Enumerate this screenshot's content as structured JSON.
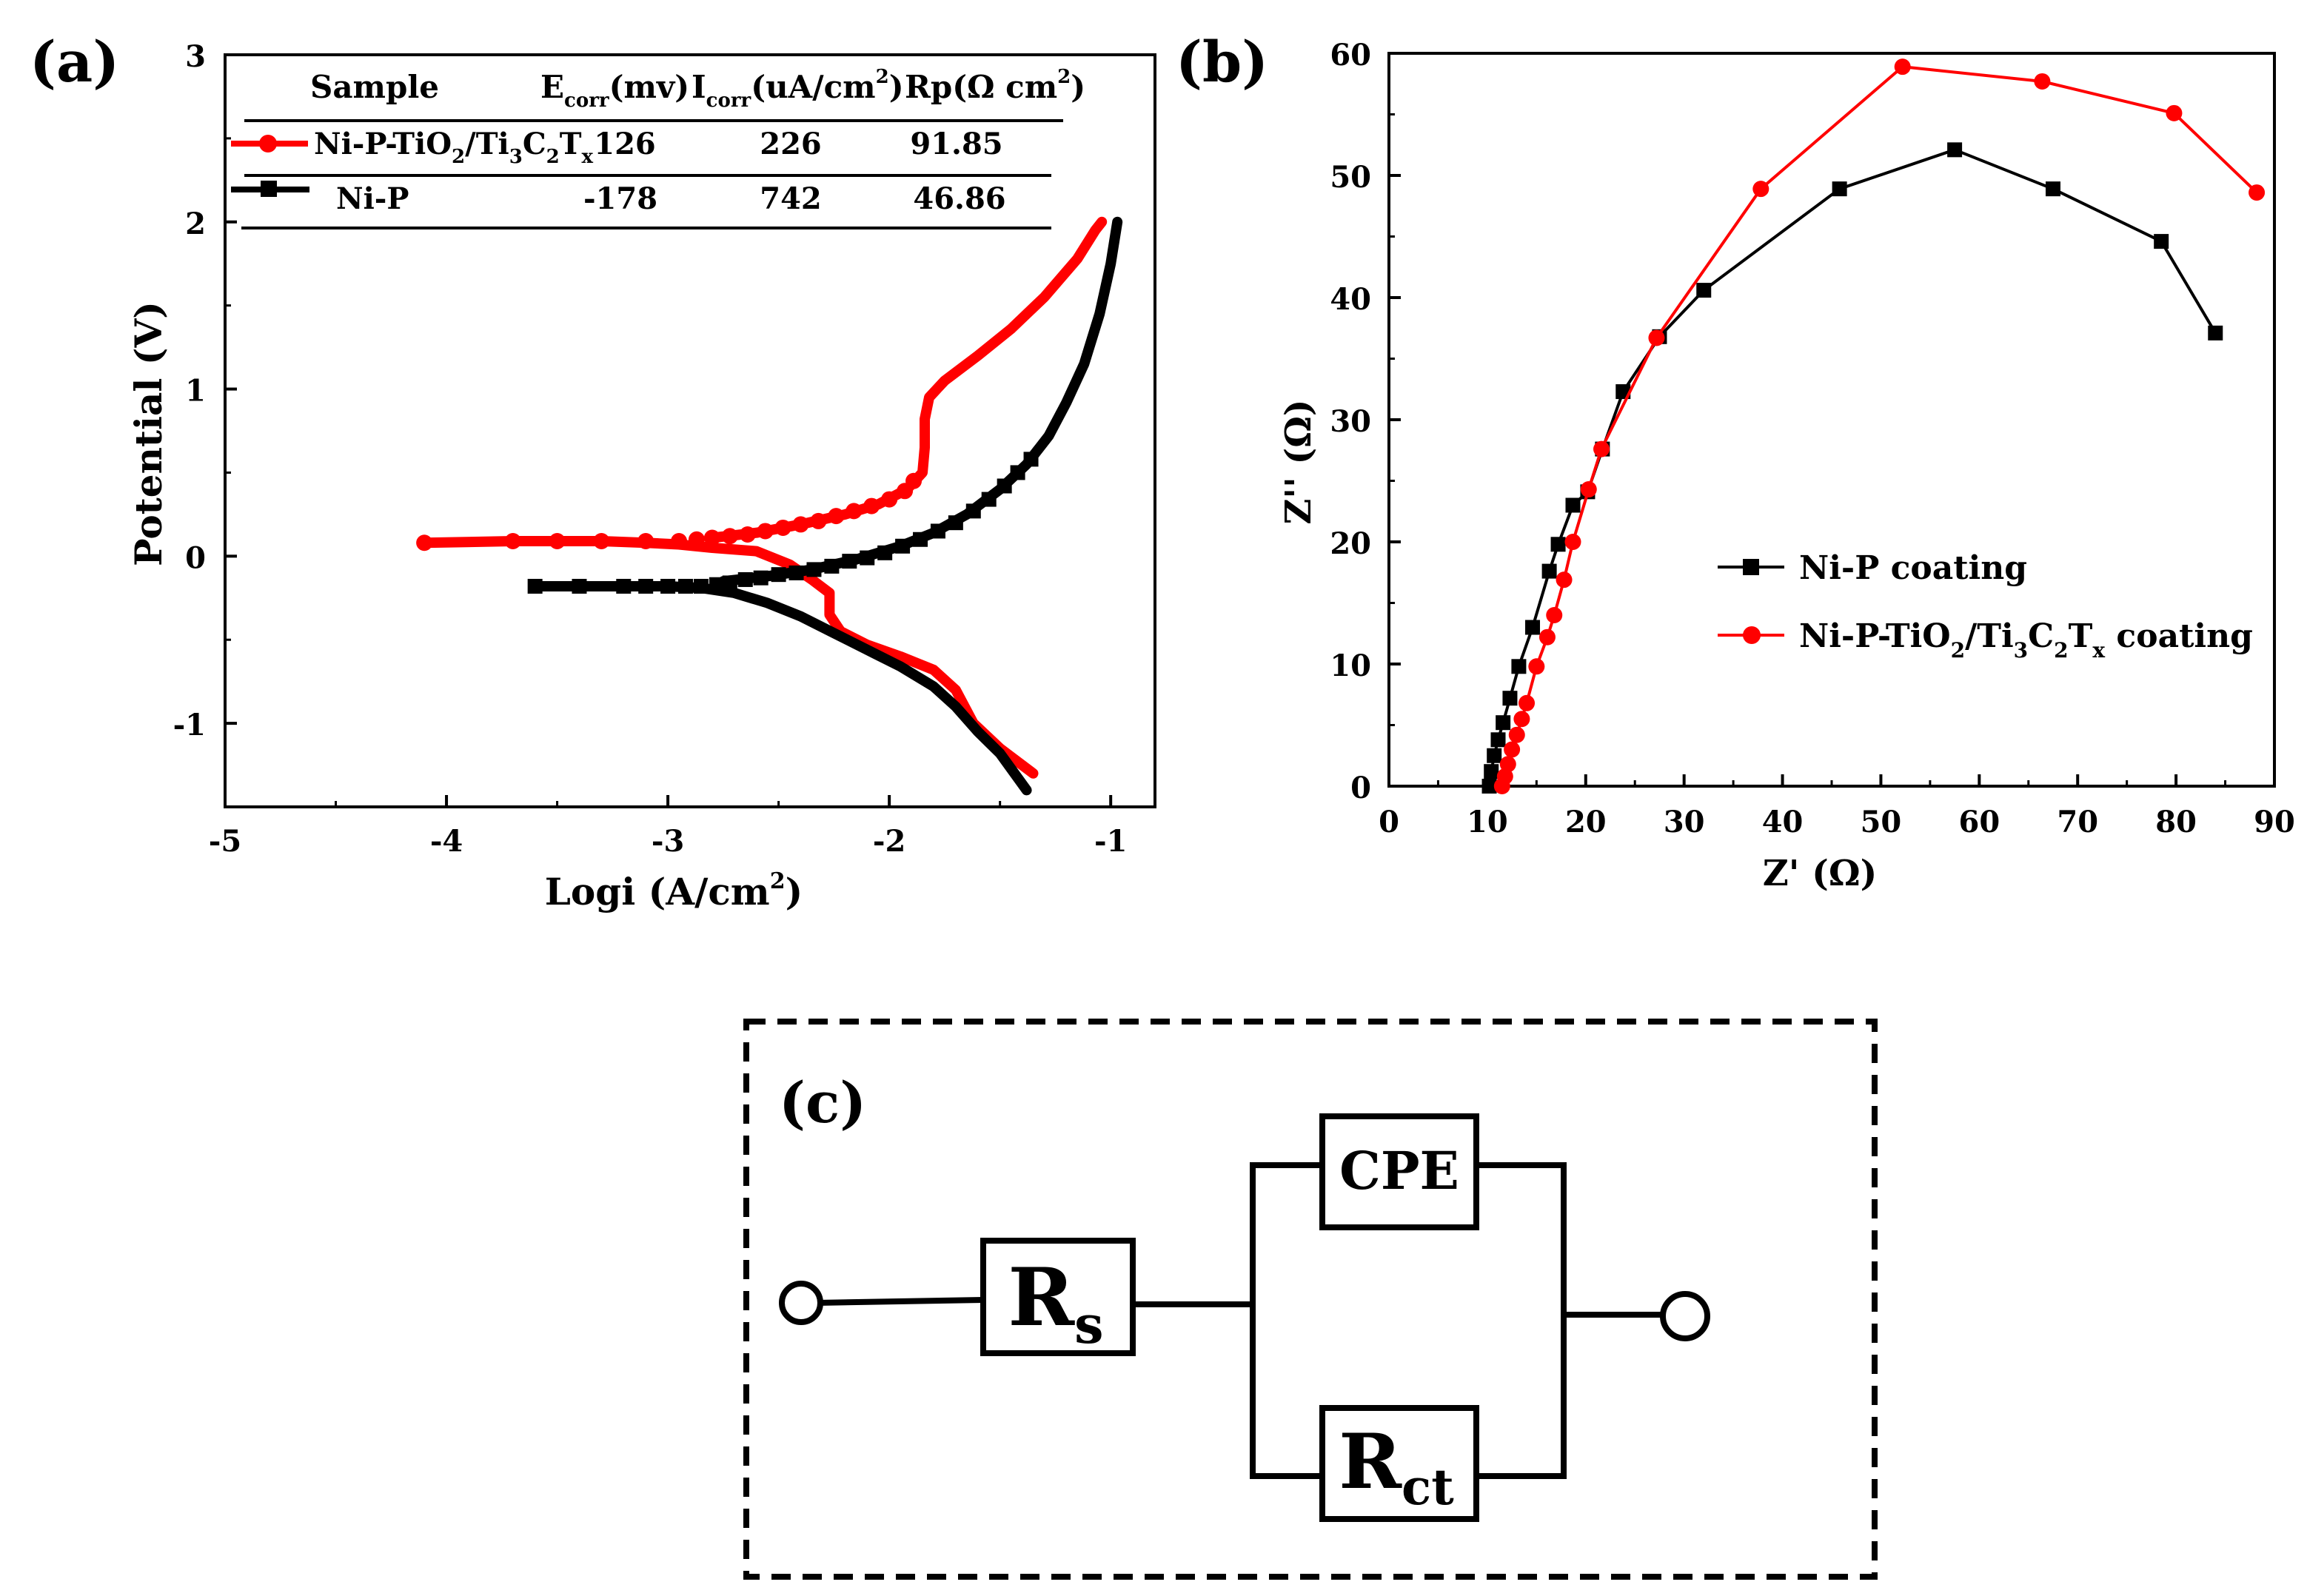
{
  "chart_data": [
    {
      "panel_label": "(a)",
      "type": "line",
      "xlabel": "Logi (A/cm",
      "xlabel_sup": "2",
      "xlabel_end": ")",
      "ylabel": "Potential (V)",
      "xlim": [
        -5,
        -0.8
      ],
      "ylim": [
        -1.5,
        3
      ],
      "xticks": [
        -5,
        -4,
        -3,
        -2,
        -1
      ],
      "yticks": [
        -1,
        0,
        1,
        2,
        3
      ],
      "colors": {
        "Ni-P": "#000000",
        "Ni-P-TiO2/Ti3C2Tx": "#ff0000"
      },
      "series": [
        {
          "name": "Ni-P-TiO2/Ti3C2Tx",
          "color": "#ff0000",
          "marker": "circle",
          "points": [
            [
              -4.1,
              0.08
            ],
            [
              -3.7,
              0.09
            ],
            [
              -3.5,
              0.09
            ],
            [
              -3.3,
              0.09
            ],
            [
              -3.1,
              0.08
            ],
            [
              -2.95,
              0.07
            ],
            [
              -2.8,
              0.05
            ],
            [
              -2.6,
              0.03
            ],
            [
              -2.45,
              -0.05
            ],
            [
              -2.35,
              -0.14
            ],
            [
              -2.27,
              -0.22
            ],
            [
              -2.27,
              -0.35
            ],
            [
              -2.22,
              -0.45
            ],
            [
              -2.1,
              -0.53
            ],
            [
              -1.95,
              -0.6
            ],
            [
              -1.8,
              -0.68
            ],
            [
              -1.7,
              -0.8
            ],
            [
              -1.62,
              -1.0
            ],
            [
              -1.5,
              -1.15
            ],
            [
              -1.35,
              -1.3
            ],
            null,
            [
              -2.8,
              0.11
            ],
            [
              -2.6,
              0.14
            ],
            [
              -2.4,
              0.19
            ],
            [
              -2.2,
              0.25
            ],
            [
              -2.05,
              0.31
            ],
            [
              -1.92,
              0.4
            ],
            [
              -1.85,
              0.5
            ],
            [
              -1.84,
              0.65
            ],
            [
              -1.84,
              0.82
            ],
            [
              -1.82,
              0.95
            ],
            [
              -1.75,
              1.05
            ],
            [
              -1.6,
              1.2
            ],
            [
              -1.45,
              1.36
            ],
            [
              -1.3,
              1.55
            ],
            [
              -1.15,
              1.78
            ],
            [
              -1.07,
              1.95
            ],
            [
              -1.04,
              2.0
            ]
          ],
          "marker_points": [
            [
              -4.1,
              0.08
            ],
            [
              -3.7,
              0.09
            ],
            [
              -3.5,
              0.09
            ],
            [
              -3.3,
              0.09
            ],
            [
              -3.1,
              0.09
            ],
            [
              -2.95,
              0.09
            ],
            [
              -2.87,
              0.1
            ],
            [
              -2.8,
              0.11
            ],
            [
              -2.72,
              0.12
            ],
            [
              -2.64,
              0.13
            ],
            [
              -2.56,
              0.15
            ],
            [
              -2.48,
              0.17
            ],
            [
              -2.4,
              0.19
            ],
            [
              -2.32,
              0.21
            ],
            [
              -2.24,
              0.24
            ],
            [
              -2.16,
              0.27
            ],
            [
              -2.08,
              0.3
            ],
            [
              -2.0,
              0.34
            ],
            [
              -1.93,
              0.39
            ],
            [
              -1.89,
              0.45
            ]
          ]
        },
        {
          "name": "Ni-P",
          "color": "#000000",
          "marker": "square",
          "points": [
            [
              -3.6,
              -0.18
            ],
            [
              -3.4,
              -0.18
            ],
            [
              -3.2,
              -0.18
            ],
            [
              -3.0,
              -0.18
            ],
            [
              -2.85,
              -0.19
            ],
            [
              -2.7,
              -0.22
            ],
            [
              -2.55,
              -0.28
            ],
            [
              -2.4,
              -0.36
            ],
            [
              -2.25,
              -0.46
            ],
            [
              -2.1,
              -0.56
            ],
            [
              -1.95,
              -0.66
            ],
            [
              -1.8,
              -0.78
            ],
            [
              -1.7,
              -0.9
            ],
            [
              -1.6,
              -1.05
            ],
            [
              -1.5,
              -1.18
            ],
            [
              -1.38,
              -1.4
            ],
            null,
            [
              -2.75,
              -0.15
            ],
            [
              -2.55,
              -0.12
            ],
            [
              -2.35,
              -0.08
            ],
            [
              -2.15,
              -0.02
            ],
            [
              -1.95,
              0.06
            ],
            [
              -1.8,
              0.14
            ],
            [
              -1.65,
              0.25
            ],
            [
              -1.5,
              0.4
            ],
            [
              -1.38,
              0.55
            ],
            [
              -1.28,
              0.72
            ],
            [
              -1.2,
              0.92
            ],
            [
              -1.12,
              1.15
            ],
            [
              -1.05,
              1.45
            ],
            [
              -1.0,
              1.75
            ],
            [
              -0.97,
              2.0
            ]
          ],
          "marker_points": [
            [
              -3.6,
              -0.18
            ],
            [
              -3.4,
              -0.18
            ],
            [
              -3.2,
              -0.18
            ],
            [
              -3.1,
              -0.18
            ],
            [
              -3.0,
              -0.18
            ],
            [
              -2.92,
              -0.18
            ],
            [
              -2.85,
              -0.18
            ],
            [
              -2.78,
              -0.17
            ],
            [
              -2.72,
              -0.16
            ],
            [
              -2.65,
              -0.14
            ],
            [
              -2.58,
              -0.13
            ],
            [
              -2.5,
              -0.11
            ],
            [
              -2.42,
              -0.1
            ],
            [
              -2.34,
              -0.08
            ],
            [
              -2.26,
              -0.06
            ],
            [
              -2.18,
              -0.03
            ],
            [
              -2.1,
              -0.01
            ],
            [
              -2.02,
              0.02
            ],
            [
              -1.94,
              0.06
            ],
            [
              -1.86,
              0.1
            ],
            [
              -1.78,
              0.15
            ],
            [
              -1.7,
              0.2
            ],
            [
              -1.62,
              0.27
            ],
            [
              -1.55,
              0.34
            ],
            [
              -1.48,
              0.42
            ],
            [
              -1.42,
              0.5
            ],
            [
              -1.36,
              0.58
            ]
          ]
        }
      ],
      "table": {
        "columns": [
          "Sample",
          "E",
          "corr",
          "(mv)",
          "I",
          "corr",
          "(uA/cm",
          "2",
          ")",
          "Rp(Ω cm",
          "2",
          ")"
        ],
        "rows": [
          {
            "sample": "Ni-P-TiO",
            "sub1": "2",
            "mid": "/Ti",
            "sub2": "3",
            "c": "C",
            "sub3": "2",
            "t": "T",
            "sub4": "x",
            "ecorr": "126",
            "icorr": "226",
            "rp": "91.85"
          },
          {
            "sample": "Ni-P",
            "ecorr": "-178",
            "icorr": "742",
            "rp": "46.86"
          }
        ]
      }
    },
    {
      "panel_label": "(b)",
      "type": "line",
      "xlabel": "Z' (Ω)",
      "ylabel": "Z'' (Ω)",
      "xlim": [
        0,
        90
      ],
      "ylim": [
        0,
        60
      ],
      "xticks": [
        0,
        10,
        20,
        30,
        40,
        50,
        60,
        70,
        80,
        90
      ],
      "yticks": [
        0,
        10,
        20,
        30,
        40,
        50,
        60
      ],
      "legend": {
        "position": "center-right",
        "items": [
          "Ni-P coating",
          "Ni-P-TiO2/Ti3C2Tx coating"
        ]
      },
      "series": [
        {
          "name": "Ni-P coating",
          "legend_parts": [
            "Ni-P coating"
          ],
          "color": "#000000",
          "marker": "square",
          "points": [
            [
              10.2,
              0
            ],
            [
              10.4,
              1.2
            ],
            [
              10.7,
              2.5
            ],
            [
              11.1,
              3.8
            ],
            [
              11.6,
              5.2
            ],
            [
              12.3,
              7.2
            ],
            [
              13.2,
              9.8
            ],
            [
              14.6,
              13.0
            ],
            [
              16.3,
              17.6
            ],
            [
              17.2,
              19.8
            ],
            [
              18.7,
              23.0
            ],
            [
              20.2,
              24.1
            ],
            [
              21.7,
              27.6
            ],
            [
              23.8,
              32.3
            ],
            [
              27.5,
              36.8
            ],
            [
              32.0,
              40.6
            ],
            [
              45.8,
              48.9
            ],
            [
              57.5,
              52.1
            ],
            [
              67.5,
              48.9
            ],
            [
              78.5,
              44.6
            ],
            [
              84.0,
              37.1
            ]
          ]
        },
        {
          "name": "Ni-P-TiO2/Ti3C2Tx coating",
          "legend_parts": [
            "Ni-P-TiO",
            "2",
            "/Ti",
            "3",
            "C",
            "2",
            "T",
            "x",
            " coating"
          ],
          "color": "#ff0000",
          "marker": "circle",
          "points": [
            [
              11.5,
              0
            ],
            [
              11.8,
              0.8
            ],
            [
              12.1,
              1.8
            ],
            [
              12.5,
              3.0
            ],
            [
              13.0,
              4.2
            ],
            [
              13.5,
              5.5
            ],
            [
              14.0,
              6.8
            ],
            [
              15.0,
              9.8
            ],
            [
              16.1,
              12.2
            ],
            [
              16.8,
              14.0
            ],
            [
              17.8,
              16.9
            ],
            [
              18.7,
              20.0
            ],
            [
              20.3,
              24.3
            ],
            [
              21.6,
              27.6
            ],
            [
              27.2,
              36.7
            ],
            [
              37.8,
              48.9
            ],
            [
              52.2,
              58.9
            ],
            [
              66.4,
              57.7
            ],
            [
              79.8,
              55.1
            ],
            [
              88.2,
              48.6
            ]
          ]
        }
      ]
    }
  ],
  "circuit": {
    "panel_label": "(c)",
    "rs": {
      "base": "R",
      "sub": "s"
    },
    "cpe": {
      "label": "CPE"
    },
    "rct": {
      "base": "R",
      "sub": "ct"
    }
  }
}
